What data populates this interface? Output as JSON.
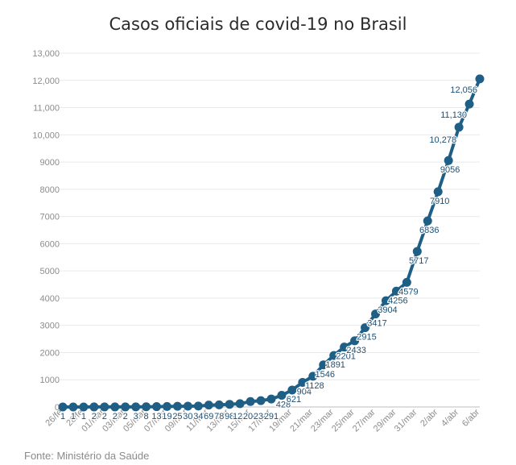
{
  "chart_data": {
    "type": "line",
    "title": "Casos oficiais de covid-19 no Brasil",
    "source": "Fonte: Ministério da Saúde",
    "xlabel": "",
    "ylabel": "",
    "ylim": [
      0,
      13000
    ],
    "grid": true,
    "legend": "none",
    "color": "#1f5f86",
    "y_ticks": [
      {
        "value": 0,
        "label": "0"
      },
      {
        "value": 1000,
        "label": "1000"
      },
      {
        "value": 2000,
        "label": "2000"
      },
      {
        "value": 3000,
        "label": "3000"
      },
      {
        "value": 4000,
        "label": "4000"
      },
      {
        "value": 5000,
        "label": "5000"
      },
      {
        "value": 6000,
        "label": "6000"
      },
      {
        "value": 7000,
        "label": "7000"
      },
      {
        "value": 8000,
        "label": "8000"
      },
      {
        "value": 9000,
        "label": "9000"
      },
      {
        "value": 10000,
        "label": "10,000"
      },
      {
        "value": 11000,
        "label": "11,000"
      },
      {
        "value": 12000,
        "label": "12,000"
      },
      {
        "value": 13000,
        "label": "13,000"
      }
    ],
    "x_tick_labels": [
      "26/fe",
      "28/fe",
      "01/mar",
      "03/mar",
      "05/mar",
      "07/mar",
      "09/mar",
      "11/mar",
      "13/mar",
      "15/mar",
      "17/mar",
      "19/mar",
      "21/mar",
      "23/mar",
      "25/mar",
      "27/mar",
      "29/mar",
      "31/mar",
      "2/abr",
      "4/abr",
      "6/abr"
    ],
    "x": [
      "26/fe",
      "27/fe",
      "28/fe",
      "29/fe",
      "01/mar",
      "02/mar",
      "03/mar",
      "04/mar",
      "05/mar",
      "06/mar",
      "07/mar",
      "08/mar",
      "09/mar",
      "10/mar",
      "11/mar",
      "12/mar",
      "13/mar",
      "14/mar",
      "15/mar",
      "16/mar",
      "17/mar",
      "18/mar",
      "19/mar",
      "20/mar",
      "21/mar",
      "22/mar",
      "23/mar",
      "24/mar",
      "25/mar",
      "26/mar",
      "27/mar",
      "28/mar",
      "29/mar",
      "30/mar",
      "31/mar",
      "1/abr",
      "2/abr",
      "3/abr",
      "4/abr",
      "5/abr",
      "6/abr"
    ],
    "values": [
      1,
      1,
      1,
      2,
      2,
      2,
      2,
      3,
      8,
      13,
      19,
      25,
      30,
      34,
      69,
      78,
      98,
      121,
      200,
      234,
      291,
      428,
      621,
      904,
      1128,
      1546,
      1891,
      2201,
      2433,
      2915,
      3417,
      3904,
      4256,
      4579,
      5717,
      6836,
      7910,
      9056,
      10278,
      11130,
      12056
    ],
    "data_labels": [
      "1",
      "1",
      "1",
      "2",
      "2",
      "2",
      "2",
      "3",
      "8",
      "13",
      "19",
      "25",
      "30",
      "34",
      "69",
      "78",
      "98",
      "121",
      "200",
      "234",
      "291",
      "428",
      "621",
      "904",
      "1128",
      "1546",
      "1891",
      "2201",
      "2433",
      "2915",
      "3417",
      "3904",
      "4256",
      "4579",
      "5717",
      "6836",
      "7910",
      "9056",
      "10,278",
      "11,130",
      "12,056"
    ]
  }
}
